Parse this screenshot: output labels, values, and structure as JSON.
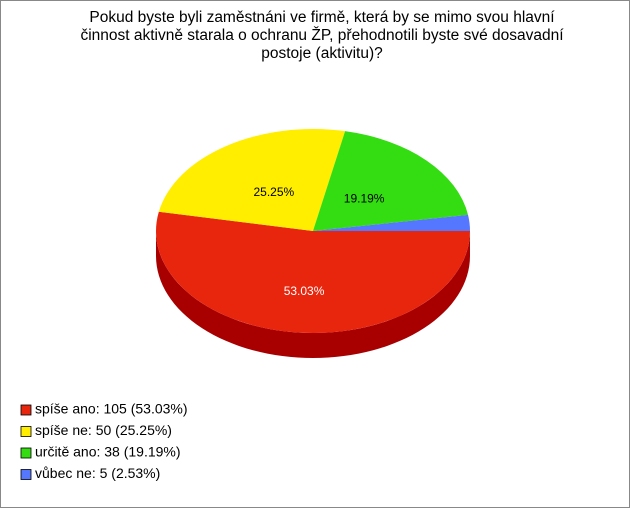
{
  "chart_data": {
    "type": "pie",
    "title": [
      "Pokud byste byli zaměstnáni ve firmě, která by se mimo svou hlavní",
      "činnost aktivně starala o ochranu ŽP, přehodnotili byste své dosavadní",
      "postoje (aktivitu)?"
    ],
    "categories": [
      "spíše ano: 105 (53.03%)",
      "spíše ne: 50 (25.25%)",
      "určitě ano: 38 (19.19%)",
      "vůbec ne: 5 (2.53%)"
    ],
    "values": [
      53.03,
      25.25,
      19.19,
      2.53
    ],
    "value_labels": [
      "53.03%",
      "25.25%",
      "19.19%",
      null
    ],
    "colors": [
      "#e8260e",
      "#ffee00",
      "#33dd11",
      "#5577ff"
    ],
    "side_colors": [
      "#a80000",
      "#b0a000",
      "#1f8a08",
      "#2a3fb0"
    ]
  }
}
